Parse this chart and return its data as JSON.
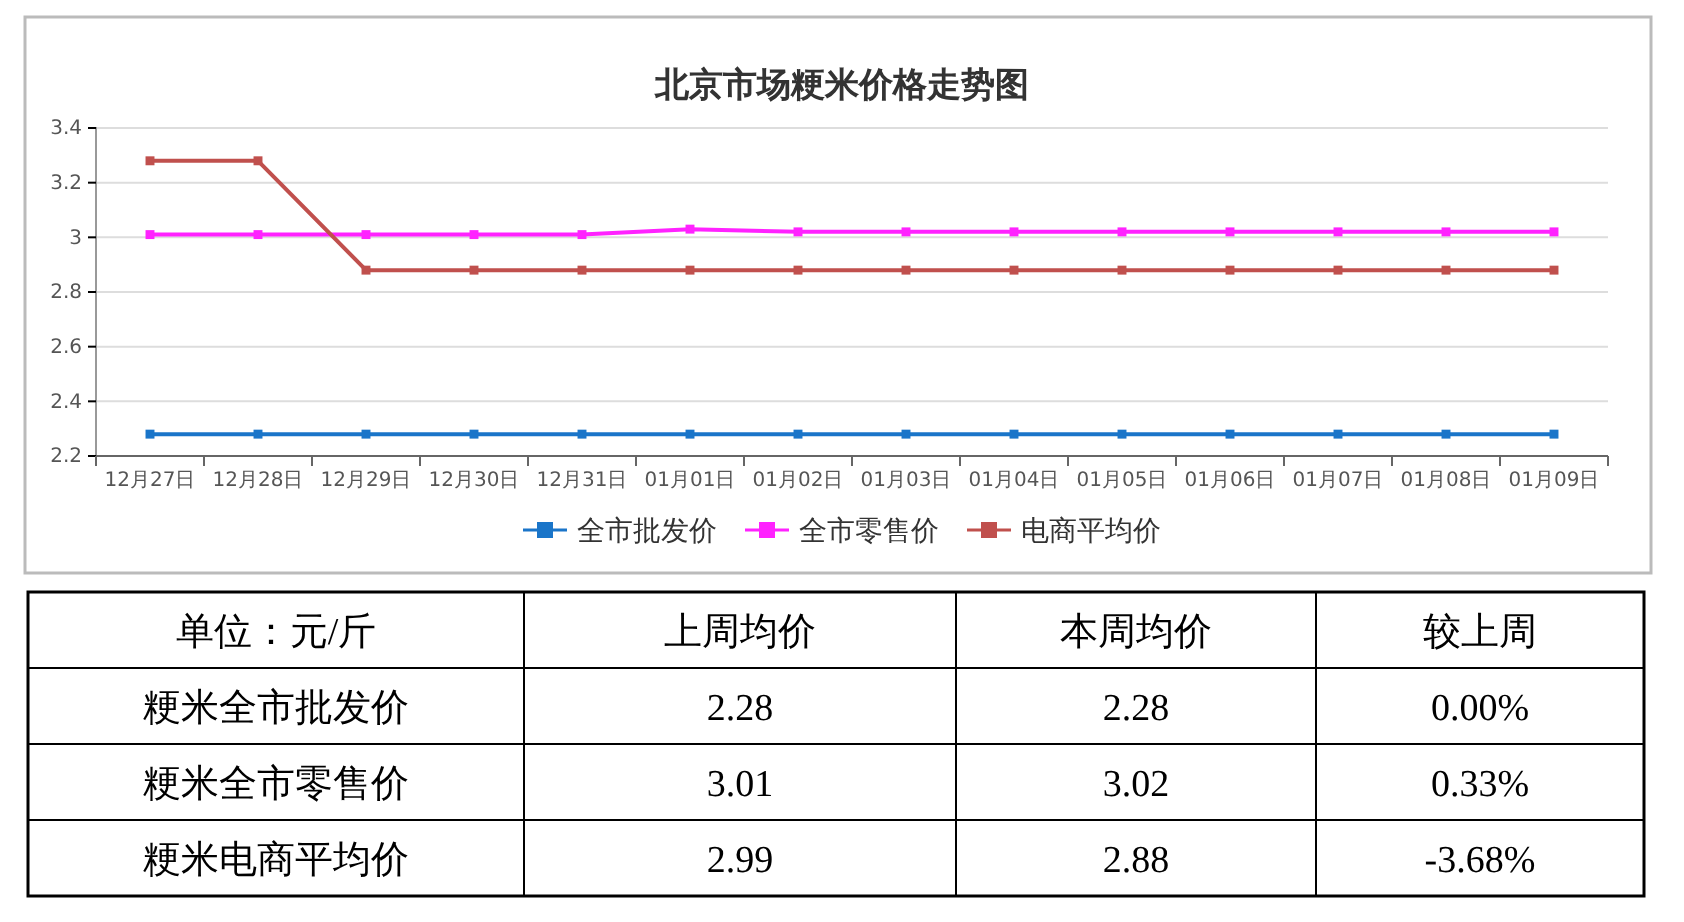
{
  "chart_data": [
    {
      "type": "line",
      "title": "北京市场粳米价格走势图",
      "categories": [
        "12月27日",
        "12月28日",
        "12月29日",
        "12月30日",
        "12月31日",
        "01月01日",
        "01月02日",
        "01月03日",
        "01月04日",
        "01月05日",
        "01月06日",
        "01月07日",
        "01月08日",
        "01月09日"
      ],
      "series": [
        {
          "name": "全市批发价",
          "color": "#1a75c9",
          "values": [
            2.28,
            2.28,
            2.28,
            2.28,
            2.28,
            2.28,
            2.28,
            2.28,
            2.28,
            2.28,
            2.28,
            2.28,
            2.28,
            2.28
          ]
        },
        {
          "name": "全市零售价",
          "color": "#ff22ff",
          "values": [
            3.01,
            3.01,
            3.01,
            3.01,
            3.01,
            3.03,
            3.02,
            3.02,
            3.02,
            3.02,
            3.02,
            3.02,
            3.02,
            3.02
          ]
        },
        {
          "name": "电商平均价",
          "color": "#c0504d",
          "values": [
            3.28,
            3.28,
            2.88,
            2.88,
            2.88,
            2.88,
            2.88,
            2.88,
            2.88,
            2.88,
            2.88,
            2.88,
            2.88,
            2.88
          ]
        }
      ],
      "ylim": [
        2.2,
        3.4
      ],
      "yticks": [
        2.2,
        2.4,
        2.6,
        2.8,
        3,
        3.2,
        3.4
      ],
      "grid": "y",
      "legend": "bottom",
      "marker": "square",
      "line_style": "solid"
    },
    {
      "type": "other",
      "title": "单位：元/斤",
      "categories": [
        "上周均价",
        "本周均价",
        "较上周"
      ],
      "y_categories": [
        "粳米全市批发价",
        "粳米全市零售价",
        "粳米电商平均价"
      ],
      "cell_labels": [
        [
          "2.28",
          "2.28",
          "0.00%"
        ],
        [
          "3.01",
          "3.02",
          "0.33%"
        ],
        [
          "2.99",
          "2.88",
          "-3.68%"
        ]
      ]
    }
  ]
}
